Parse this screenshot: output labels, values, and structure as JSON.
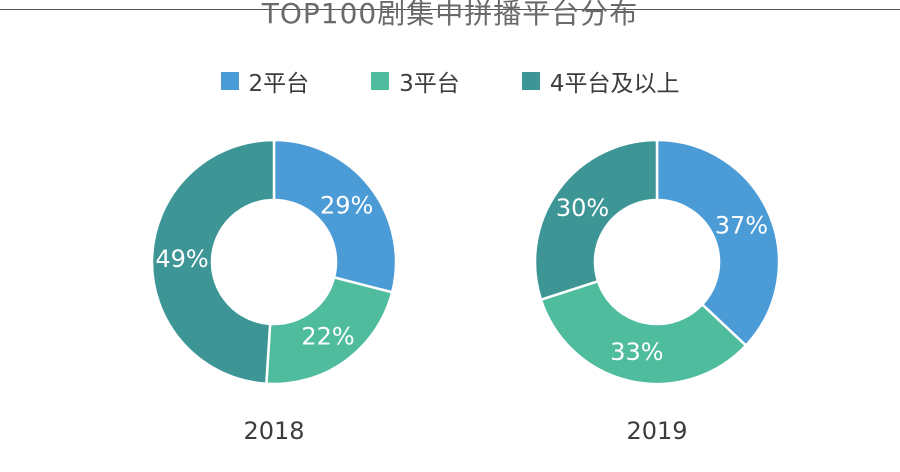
{
  "chart_data": {
    "type": "pie",
    "title": "TOP100剧集中拼播平台分布",
    "legend": {
      "placement": "top"
    },
    "series_names": [
      "2平台",
      "3平台",
      "4平台及以上"
    ],
    "colors": [
      "#4b9bd7",
      "#4fbc9e",
      "#3d9595"
    ],
    "charts": [
      {
        "label": "2018",
        "values": [
          29,
          22,
          49
        ],
        "value_labels": [
          "29%",
          "22%",
          "49%"
        ]
      },
      {
        "label": "2019",
        "values": [
          37,
          33,
          30
        ],
        "value_labels": [
          "37%",
          "33%",
          "30%"
        ]
      }
    ]
  }
}
